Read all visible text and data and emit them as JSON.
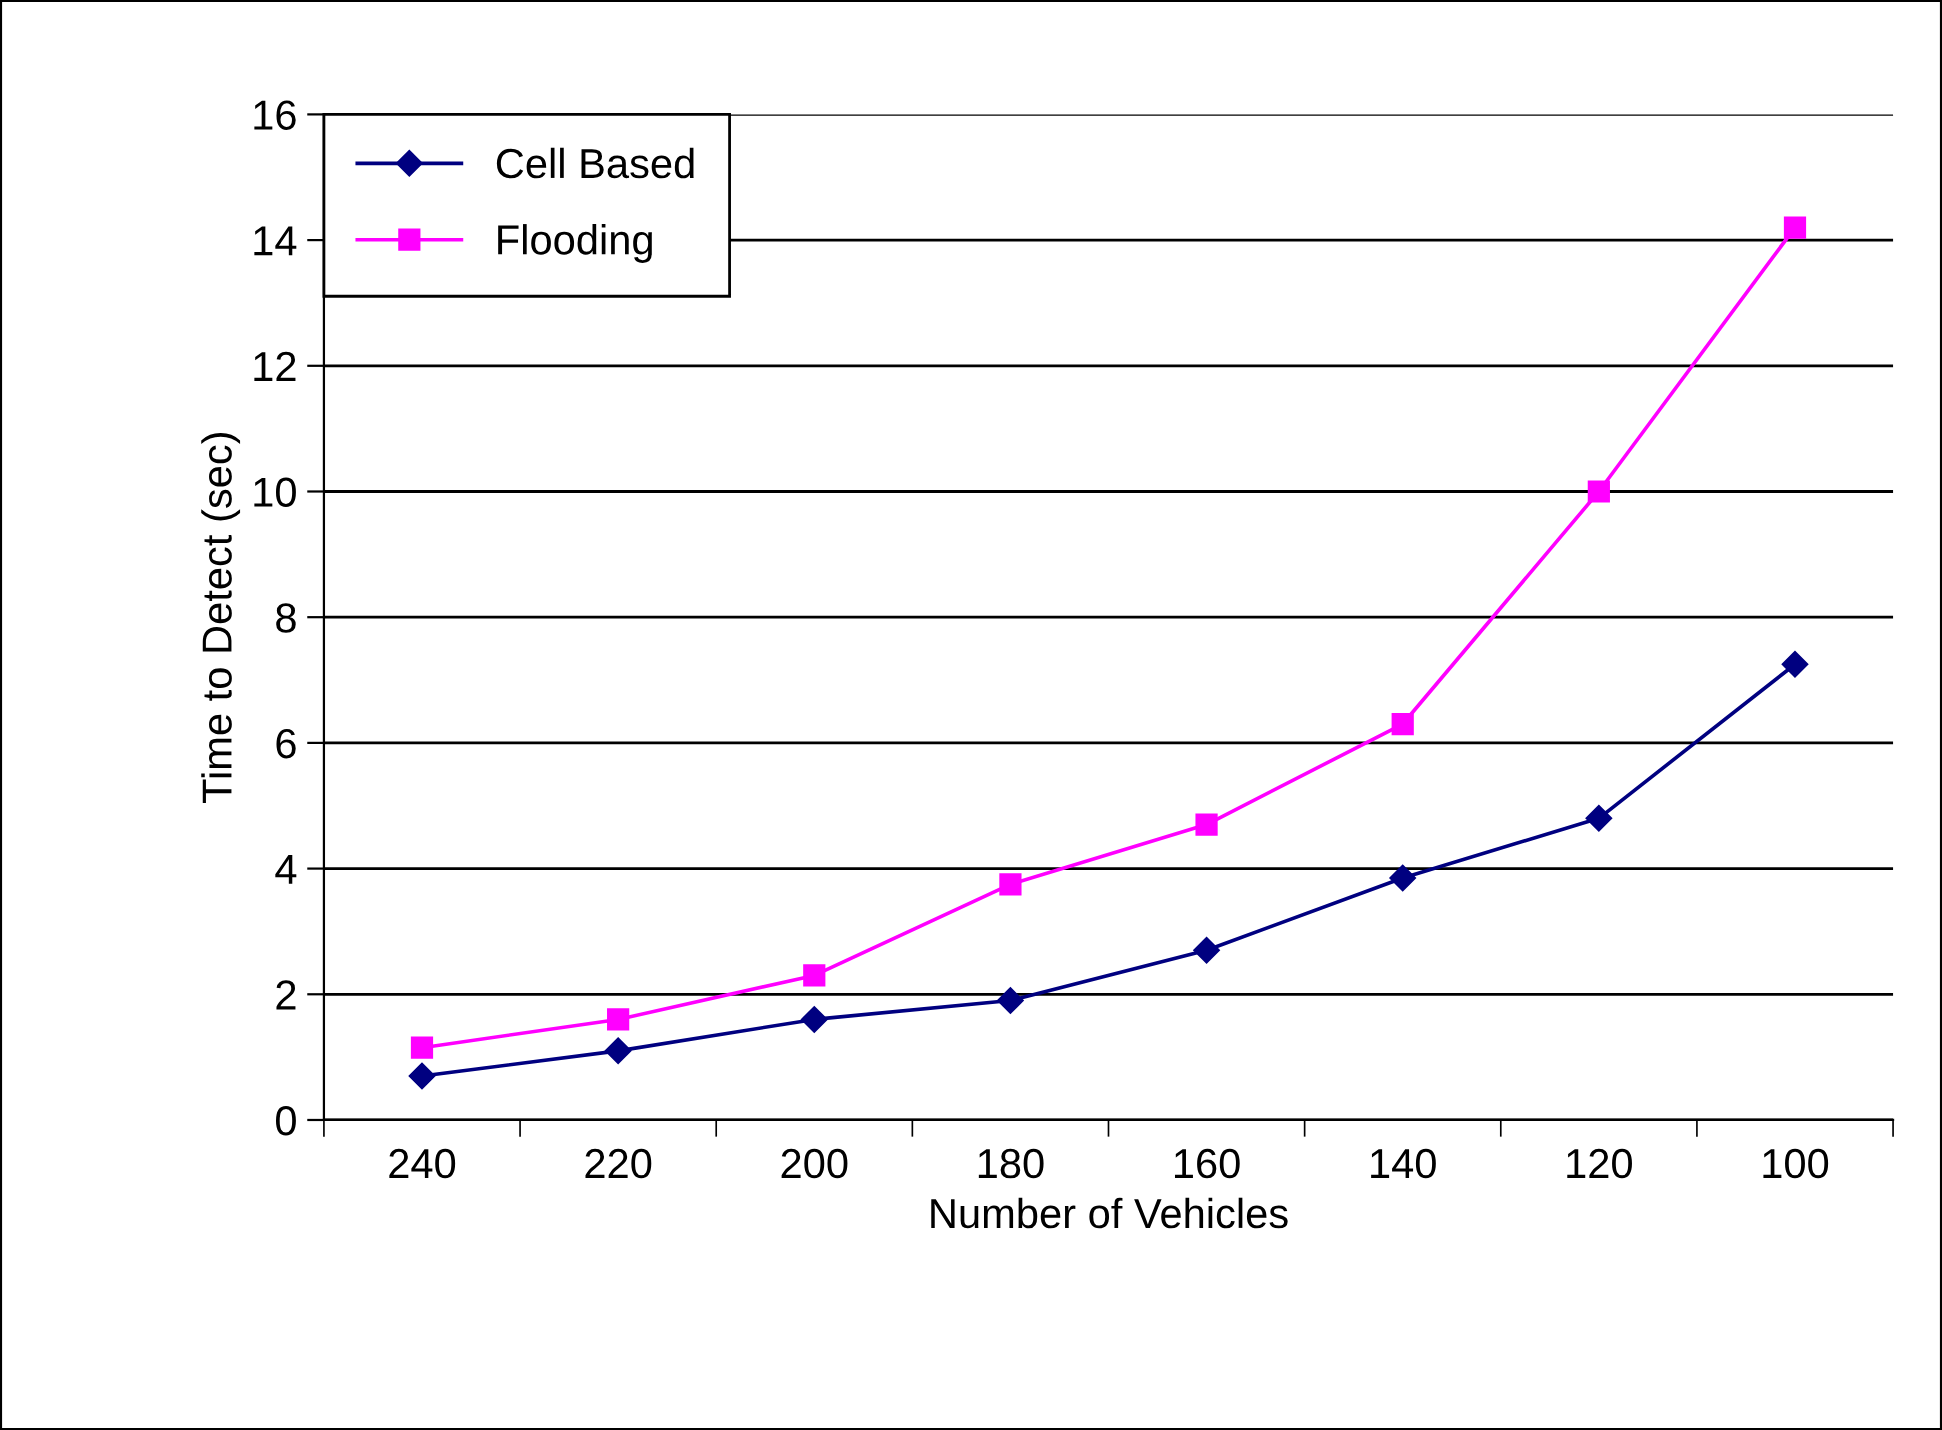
{
  "chart_data": {
    "type": "line",
    "xlabel": "Number of Vehicles",
    "ylabel": "Time to Detect (sec)",
    "categories": [
      "240",
      "220",
      "200",
      "180",
      "160",
      "140",
      "120",
      "100"
    ],
    "series": [
      {
        "name": "Cell Based",
        "color": "#000080",
        "marker": "diamond",
        "values": [
          0.7,
          1.1,
          1.6,
          1.9,
          2.7,
          3.85,
          4.8,
          7.25
        ]
      },
      {
        "name": "Flooding",
        "color": "#ff00ff",
        "marker": "square",
        "values": [
          1.15,
          1.6,
          2.3,
          3.75,
          4.7,
          6.3,
          10.0,
          14.2
        ]
      }
    ],
    "ylim": [
      0,
      16
    ],
    "yticks": [
      0,
      2,
      4,
      6,
      8,
      10,
      12,
      14,
      16
    ],
    "grid": "y",
    "legend": "top left",
    "line_style": "solid"
  }
}
